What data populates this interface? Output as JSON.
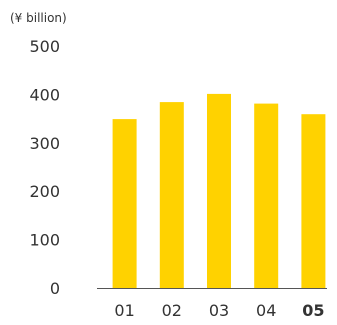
{
  "chart_data": {
    "type": "bar",
    "unit_label": "(¥ billion)",
    "categories": [
      "01",
      "02",
      "03",
      "04",
      "05"
    ],
    "highlight_category": "05",
    "values": [
      349,
      384,
      401,
      381,
      359
    ],
    "ylim": [
      0,
      500
    ],
    "yticks": [
      0,
      100,
      200,
      300,
      400,
      500
    ],
    "grid": false,
    "bar_color": "#FFD200",
    "axis_color": "#555555"
  }
}
